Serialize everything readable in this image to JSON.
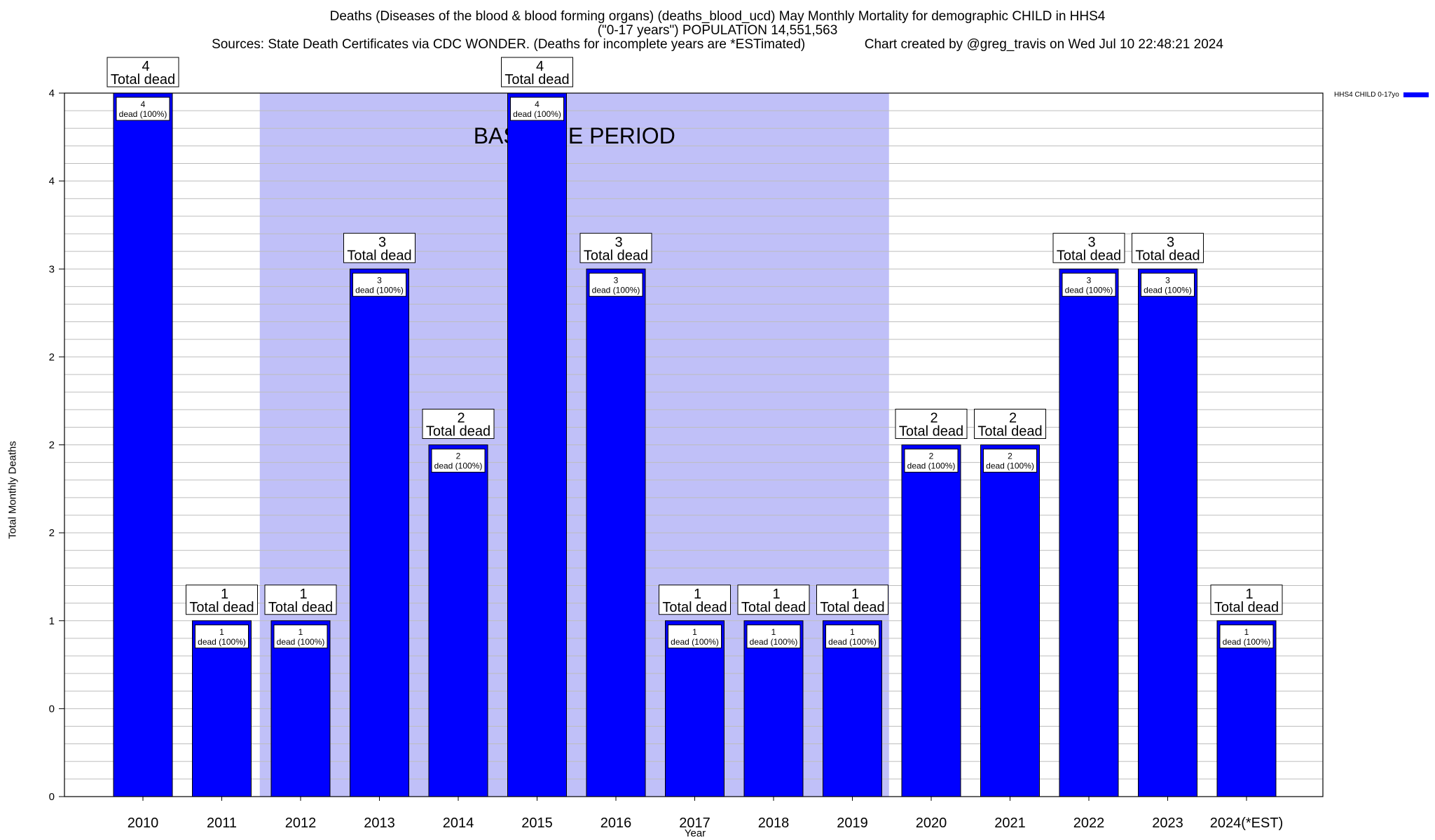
{
  "title": {
    "line1": "Deaths (Diseases of the blood & blood forming organs) (deaths_blood_ucd) May Monthly Mortality for demographic CHILD in HHS4",
    "line2": "(\"0-17 years\") POPULATION 14,551,563",
    "line3": "Sources: State Death Certificates via CDC WONDER. (Deaths for incomplete years are *ESTimated)                Chart created by @greg_travis on Wed Jul 10 22:48:21 2024"
  },
  "colors": {
    "bar": "#0000ff",
    "baseline_shade": "#c0c0f8",
    "grid": "#bdbdbd"
  },
  "chart_data": {
    "type": "bar",
    "categories": [
      "2010",
      "2011",
      "2012",
      "2013",
      "2014",
      "2015",
      "2016",
      "2017",
      "2018",
      "2019",
      "2020",
      "2021",
      "2022",
      "2023",
      "2024(*EST)"
    ],
    "series": [
      {
        "name": "HHS4 CHILD 0-17yo",
        "values": [
          4,
          1,
          1,
          3,
          2,
          4,
          3,
          1,
          1,
          1,
          2,
          2,
          3,
          3,
          1
        ]
      }
    ],
    "top_labels": [
      [
        "4",
        "Total dead"
      ],
      [
        "1",
        "Total dead"
      ],
      [
        "1",
        "Total dead"
      ],
      [
        "3",
        "Total dead"
      ],
      [
        "2",
        "Total dead"
      ],
      [
        "4",
        "Total dead"
      ],
      [
        "3",
        "Total dead"
      ],
      [
        "1",
        "Total dead"
      ],
      [
        "1",
        "Total dead"
      ],
      [
        "1",
        "Total dead"
      ],
      [
        "2",
        "Total dead"
      ],
      [
        "2",
        "Total dead"
      ],
      [
        "3",
        "Total dead"
      ],
      [
        "3",
        "Total dead"
      ],
      [
        "1",
        "Total dead"
      ]
    ],
    "inner_labels": [
      [
        "4",
        "dead (100%)"
      ],
      [
        "1",
        "dead (100%)"
      ],
      [
        "1",
        "dead (100%)"
      ],
      [
        "3",
        "dead (100%)"
      ],
      [
        "2",
        "dead (100%)"
      ],
      [
        "4",
        "dead (100%)"
      ],
      [
        "3",
        "dead (100%)"
      ],
      [
        "1",
        "dead (100%)"
      ],
      [
        "1",
        "dead (100%)"
      ],
      [
        "1",
        "dead (100%)"
      ],
      [
        "2",
        "dead (100%)"
      ],
      [
        "2",
        "dead (100%)"
      ],
      [
        "3",
        "dead (100%)"
      ],
      [
        "3",
        "dead (100%)"
      ],
      [
        "1",
        "dead (100%)"
      ]
    ],
    "ylim": [
      0,
      4
    ],
    "y_ticks": [
      0,
      0.5,
      1,
      1.5,
      2,
      2.5,
      3,
      3.5,
      4
    ],
    "y_tick_labels": [
      "0",
      "0",
      "1",
      "2",
      "2",
      "2",
      "3",
      "4",
      "4"
    ],
    "xlabel": "Year",
    "ylabel": "Total Monthly Deaths",
    "baseline": {
      "label": "BASELINE PERIOD",
      "from": "2012",
      "to": "2019"
    },
    "grid": true,
    "legend": "top-right"
  }
}
